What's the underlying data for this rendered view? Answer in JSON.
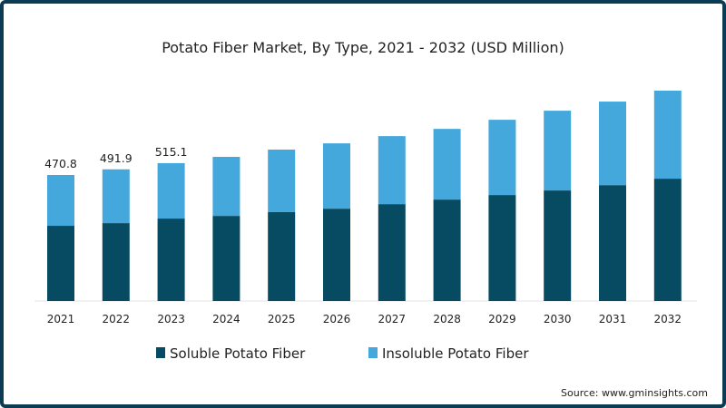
{
  "chart_data": {
    "type": "bar",
    "stacked": true,
    "title": "Potato Fiber Market, By Type, 2021 - 2032 (USD Million)",
    "xlabel": "",
    "ylabel": "",
    "categories": [
      "2021",
      "2022",
      "2023",
      "2024",
      "2025",
      "2026",
      "2027",
      "2028",
      "2029",
      "2030",
      "2031",
      "2032"
    ],
    "series": [
      {
        "name": "Soluble Potato Fiber",
        "color": "#064b62",
        "values": [
          281,
          291,
          308,
          318,
          332,
          345,
          362,
          379,
          396,
          413,
          433,
          457
        ]
      },
      {
        "name": "Insoluble Potato Fiber",
        "color": "#45a8dc",
        "values": [
          189.8,
          200.9,
          207.1,
          220.5,
          233.6,
          244,
          254,
          264,
          281,
          298,
          312,
          329
        ]
      }
    ],
    "data_labels": [
      {
        "category": "2021",
        "text": "470.8"
      },
      {
        "category": "2022",
        "text": "491.9"
      },
      {
        "category": "2023",
        "text": "515.1"
      }
    ],
    "ylim": [
      0,
      800
    ],
    "grid": false,
    "legend_position": "bottom",
    "source": "Source: www.gminsights.com"
  }
}
